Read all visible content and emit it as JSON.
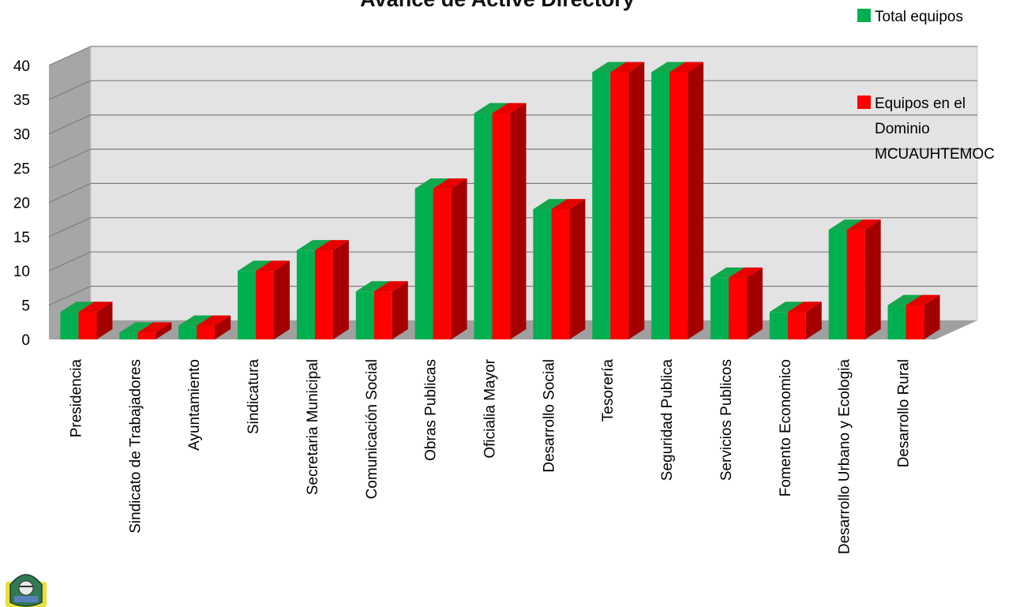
{
  "chart_data": {
    "type": "bar",
    "title": "Avance de Active Directory",
    "categories": [
      "Presidencia",
      "Sindicato de Trabajadores",
      "Ayuntamiento",
      "Sindicatura",
      "Secretaria Municipal",
      "Comunicación Social",
      "Obras Publicas",
      "Oficialia Mayor",
      "Desarrollo Social",
      "Tesorería",
      "Seguridad Publica",
      "Servicios  Publicos",
      "Fomento Economico",
      "Desarrollo Urbano y Ecologia",
      "Desarrollo Rural"
    ],
    "series": [
      {
        "name": "Total equipos",
        "color": "#00b050",
        "values": [
          4,
          1,
          2,
          10,
          13,
          7,
          22,
          33,
          19,
          39,
          39,
          9,
          4,
          16,
          5
        ]
      },
      {
        "name": "Equipos en el Dominio MCUAUHTEMOC",
        "color": "#ff0000",
        "values": [
          4,
          1,
          2,
          10,
          13,
          7,
          22,
          33,
          19,
          39,
          39,
          9,
          4,
          16,
          5
        ]
      }
    ],
    "yticks": [
      "0",
      "5",
      "10",
      "15",
      "20",
      "25",
      "30",
      "35",
      "40"
    ],
    "ylim": [
      0,
      40
    ],
    "grid": true,
    "legend": "right",
    "legend_lines": [
      [
        "Total equipos"
      ],
      [
        "Equipos en el",
        "Dominio",
        "MCUAUHTEMOC"
      ]
    ]
  },
  "logo": {
    "icon": "shield-seal-icon"
  }
}
